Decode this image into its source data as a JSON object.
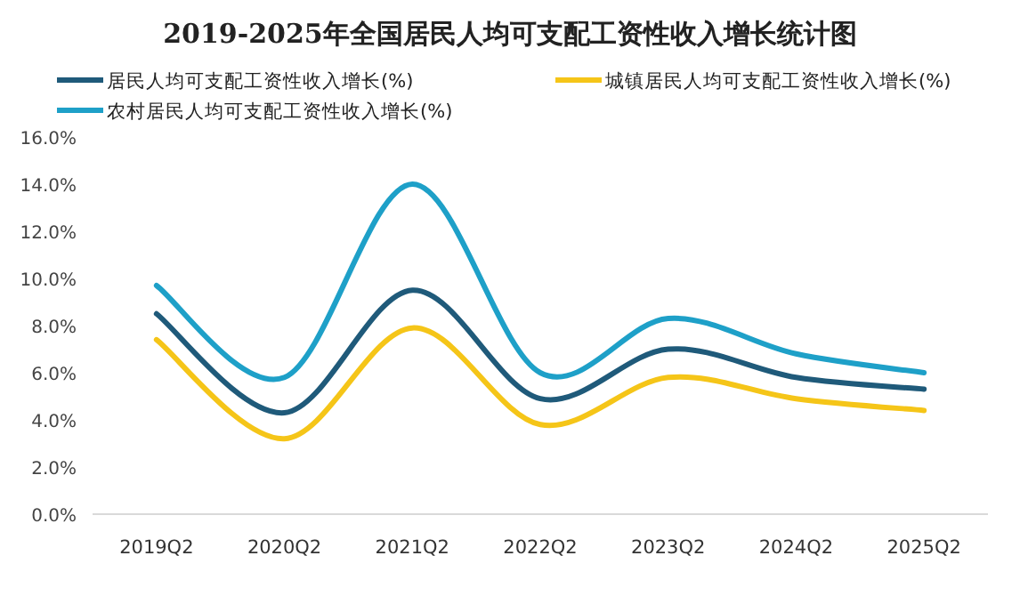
{
  "chart_data": {
    "type": "line",
    "title": "2019-2025年全国居民人均可支配工资性收入增长统计图",
    "categories": [
      "2019Q2",
      "2020Q2",
      "2021Q2",
      "2022Q2",
      "2023Q2",
      "2024Q2",
      "2025Q2"
    ],
    "series": [
      {
        "name": "居民人均可支配工资性收入增长(%)",
        "color": "#1f5a7a",
        "values": [
          8.5,
          4.3,
          9.5,
          4.9,
          7.0,
          5.8,
          5.3
        ]
      },
      {
        "name": "城镇居民人均可支配工资性收入增长(%)",
        "color": "#f5c518",
        "values": [
          7.4,
          3.2,
          7.9,
          3.8,
          5.8,
          4.9,
          4.4
        ]
      },
      {
        "name": "农村居民人均可支配工资性收入增长(%)",
        "color": "#1ea0c8",
        "values": [
          9.7,
          5.8,
          14.0,
          6.0,
          8.3,
          6.8,
          6.0
        ]
      }
    ],
    "ylim": [
      0,
      16
    ],
    "yticks": [
      {
        "value": 0,
        "label": "0.0%"
      },
      {
        "value": 2,
        "label": "2.0%"
      },
      {
        "value": 4,
        "label": "4.0%"
      },
      {
        "value": 6,
        "label": "6.0%"
      },
      {
        "value": 8,
        "label": "8.0%"
      },
      {
        "value": 10,
        "label": "10.0%"
      },
      {
        "value": 12,
        "label": "12.0%"
      },
      {
        "value": 14,
        "label": "14.0%"
      },
      {
        "value": 16,
        "label": "16.0%"
      }
    ],
    "grid": false,
    "legend": "top",
    "marker": "none",
    "line_style": "solid"
  }
}
